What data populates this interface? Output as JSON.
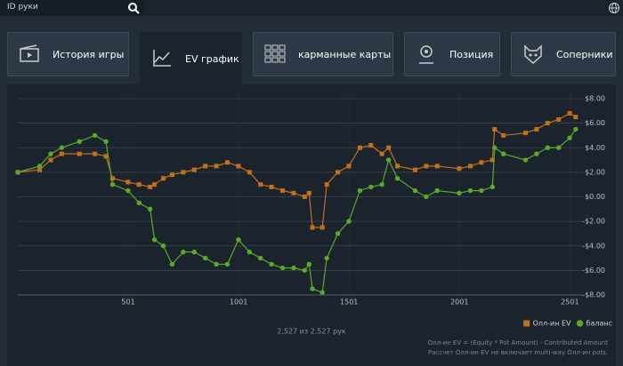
{
  "header": {
    "search_placeholder": "ID руки"
  },
  "tabs": [
    "История игры",
    "EV график",
    "карманные карты",
    "Позиция",
    "Соперники"
  ],
  "active_tab": 1,
  "chart_data": {
    "type": "line",
    "x": [
      1,
      100,
      150,
      200,
      280,
      350,
      400,
      430,
      500,
      550,
      600,
      620,
      660,
      700,
      750,
      800,
      850,
      900,
      950,
      1000,
      1050,
      1100,
      1150,
      1200,
      1250,
      1300,
      1320,
      1335,
      1380,
      1400,
      1450,
      1500,
      1550,
      1600,
      1650,
      1680,
      1720,
      1800,
      1850,
      1900,
      2000,
      2050,
      2100,
      2150,
      2160,
      2200,
      2300,
      2350,
      2400,
      2450,
      2500,
      2527
    ],
    "series": [
      {
        "name": "Олл-ин EV",
        "color": "#c46f1a",
        "marker": "square",
        "values": [
          2.0,
          2.2,
          3.0,
          3.5,
          3.5,
          3.5,
          3.3,
          1.5,
          1.2,
          1.0,
          0.8,
          1.0,
          1.5,
          1.8,
          2.0,
          2.2,
          2.5,
          2.5,
          2.8,
          2.5,
          2.0,
          1.0,
          0.8,
          0.5,
          0.3,
          0.0,
          0.3,
          -2.5,
          -2.5,
          1.0,
          2.0,
          2.5,
          4.0,
          4.2,
          3.5,
          4.0,
          2.5,
          2.2,
          2.5,
          2.5,
          2.3,
          2.5,
          2.8,
          3.0,
          5.5,
          5.0,
          5.2,
          5.5,
          6.0,
          6.3,
          6.8,
          6.5
        ]
      },
      {
        "name": "баланс",
        "color": "#5aaa2a",
        "marker": "circle",
        "values": [
          2.0,
          2.5,
          3.5,
          4.0,
          4.5,
          5.0,
          4.5,
          1.0,
          0.5,
          -0.5,
          -1.0,
          -3.5,
          -4.0,
          -5.5,
          -4.5,
          -4.5,
          -5.0,
          -5.5,
          -5.5,
          -3.5,
          -4.5,
          -5.0,
          -5.5,
          -5.8,
          -5.8,
          -6.0,
          -5.5,
          -7.5,
          -7.8,
          -5.0,
          -3.0,
          -2.0,
          0.5,
          0.8,
          1.0,
          3.0,
          1.5,
          0.5,
          0.0,
          0.5,
          0.3,
          0.5,
          0.5,
          0.8,
          4.0,
          3.5,
          3.0,
          3.5,
          4.0,
          4.0,
          4.8,
          5.5
        ]
      }
    ],
    "xlim": [
      1,
      2560
    ],
    "xticks": [
      501,
      1001,
      1501,
      2001,
      2501
    ],
    "ylim": [
      -8,
      8
    ],
    "yticks": [
      {
        "value": 8,
        "label": "$8.00"
      },
      {
        "value": 6,
        "label": "$6.00"
      },
      {
        "value": 4,
        "label": "$4.00"
      },
      {
        "value": 2,
        "label": "$2.00"
      },
      {
        "value": 0,
        "label": "$0.00"
      },
      {
        "value": -2,
        "label": "-$2.00"
      },
      {
        "value": -4,
        "label": "-$4.00"
      },
      {
        "value": -6,
        "label": "-$6.00"
      },
      {
        "value": -8,
        "label": "-$8.00"
      }
    ],
    "grid": true,
    "legend": "bottom-right"
  },
  "footer": {
    "count": "2,527 из 2,527 рук",
    "notes": [
      "Олл-ин EV = (Equity * Pot Amount) - Contributed Amount",
      "Рассчет Олл-ин EV не включает multi-way Олл-ин pots."
    ]
  }
}
